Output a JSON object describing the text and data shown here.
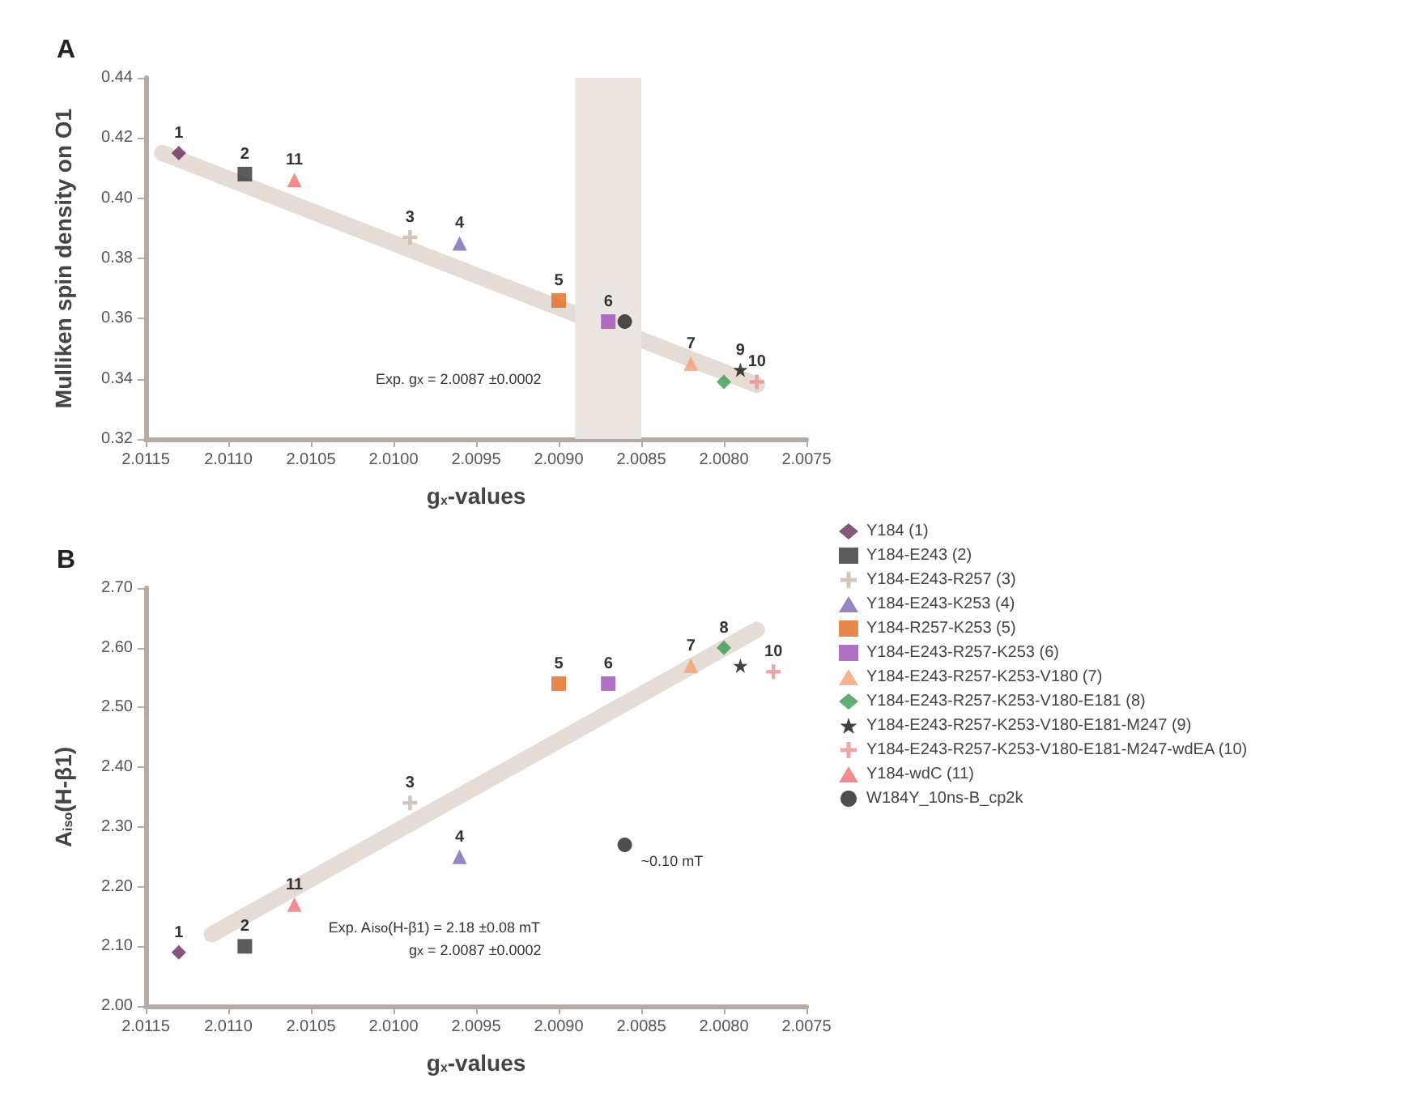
{
  "chart_data": [
    {
      "type": "scatter",
      "title": "A",
      "xlabel": "g$_{x}$-values",
      "ylabel": "Mulliken spin density on O1",
      "xlim": [
        2.0115,
        2.0075
      ],
      "xticks": [
        2.0115,
        {
          "value": 2.011,
          "label": "2.0110"
        },
        2.0105,
        {
          "value": 2.01,
          "label": "2.0100"
        },
        2.0095,
        {
          "value": 2.009,
          "label": "2.0090"
        },
        2.0085,
        {
          "value": 2.008,
          "label": "2.0080"
        },
        2.0075
      ],
      "ylim": [
        0.32,
        0.44
      ],
      "yticks": [
        {
          "value": 0.32,
          "label": "0.32"
        },
        {
          "value": 0.34,
          "label": "0.34"
        },
        {
          "value": 0.36,
          "label": "0.36"
        },
        {
          "value": 0.38,
          "label": "0.38"
        },
        {
          "value": 0.4,
          "label": "0.40"
        },
        {
          "value": 0.42,
          "label": "0.42"
        },
        {
          "value": 0.44,
          "label": "0.44"
        }
      ],
      "grid": false,
      "legend": false,
      "bands": [
        {
          "axis": "x",
          "from": 2.0089,
          "to": 2.0085,
          "color": "#ece6e3"
        }
      ],
      "series": [
        {
          "type": "line",
          "color": "#e6dcd6",
          "x": [
            2.0114,
            2.0078
          ],
          "values": [
            0.415,
            0.338
          ]
        },
        {
          "color": "#6b2a5a",
          "marker": "diamond",
          "x": [
            2.0113
          ],
          "values": [
            0.415
          ]
        },
        {
          "color": "#333333",
          "marker": "square",
          "x": [
            2.0109
          ],
          "values": [
            0.408
          ]
        },
        {
          "color": "#c8b8a8",
          "marker": "cross",
          "x": [
            2.0099
          ],
          "values": [
            0.387
          ]
        },
        {
          "color": "#7b68b0",
          "marker": "triangle",
          "x": [
            2.0096
          ],
          "values": [
            0.385
          ]
        },
        {
          "color": "#e06a20",
          "marker": "square",
          "x": [
            2.009
          ],
          "values": [
            0.366
          ]
        },
        {
          "color": "#9b4fb0",
          "marker": "square",
          "x": [
            2.0087
          ],
          "values": [
            0.359
          ]
        },
        {
          "color": "#f4a070",
          "marker": "triangle",
          "x": [
            2.0082
          ],
          "values": [
            0.345
          ]
        },
        {
          "color": "#3a9a50",
          "marker": "diamond",
          "x": [
            2.008
          ],
          "values": [
            0.339
          ]
        },
        {
          "color": "#111111",
          "marker": "star",
          "x": [
            2.0079
          ],
          "values": [
            0.343
          ]
        },
        {
          "color": "#e89090",
          "marker": "cross",
          "x": [
            2.0078
          ],
          "values": [
            0.339
          ]
        },
        {
          "color": "#f07070",
          "marker": "triangle",
          "x": [
            2.0106
          ],
          "values": [
            0.406
          ]
        },
        {
          "color": "#222222",
          "marker": "circle",
          "x": [
            2.0086
          ],
          "values": [
            0.359
          ]
        }
      ],
      "annotations": [
        "Exp. g$_{x}$ = 2.0087 ±0.0002",
        {
          "text": "1",
          "x": 2.0113,
          "y": 0.415
        },
        {
          "text": "2",
          "x": 2.0109,
          "y": 0.408
        },
        {
          "text": "11",
          "x": 2.0106,
          "y": 0.406
        },
        {
          "text": "3",
          "x": 2.0099,
          "y": 0.387
        },
        {
          "text": "4",
          "x": 2.0096,
          "y": 0.385
        },
        {
          "text": "5",
          "x": 2.009,
          "y": 0.366
        },
        {
          "text": "6",
          "x": 2.0087,
          "y": 0.359
        },
        {
          "text": "7",
          "x": 2.0082,
          "y": 0.345
        },
        {
          "text": "9",
          "x": 2.0079,
          "y": 0.343
        },
        {
          "text": "10",
          "x": 2.0078,
          "y": 0.339
        }
      ]
    },
    {
      "type": "scatter",
      "title": "B",
      "xlabel": "g$_{x}$-values",
      "ylabel": "A$_{iso}$(H-β1)",
      "xlim": [
        2.0115,
        2.0075
      ],
      "xticks": [
        2.0115,
        {
          "value": 2.011,
          "label": "2.0110"
        },
        2.0105,
        {
          "value": 2.01,
          "label": "2.0100"
        },
        2.0095,
        {
          "value": 2.009,
          "label": "2.0090"
        },
        2.0085,
        {
          "value": 2.008,
          "label": "2.0080"
        },
        2.0075
      ],
      "ylim": [
        2.0,
        2.7
      ],
      "yticks": [
        {
          "value": 2.0,
          "label": "2.00"
        },
        {
          "value": 2.1,
          "label": "2.10"
        },
        {
          "value": 2.2,
          "label": "2.20"
        },
        {
          "value": 2.3,
          "label": "2.30"
        },
        {
          "value": 2.4,
          "label": "2.40"
        },
        {
          "value": 2.5,
          "label": "2.50"
        },
        {
          "value": 2.6,
          "label": "2.60"
        },
        {
          "value": 2.7,
          "label": "2.70"
        }
      ],
      "grid": false,
      "legend": "right",
      "series": [
        {
          "type": "line",
          "color": "#e6dcd6",
          "x": [
            2.0111,
            2.0078
          ],
          "values": [
            2.12,
            2.63
          ]
        },
        {
          "name": "Y184 (1)",
          "color": "#6b2a5a",
          "marker": "diamond",
          "x": [
            2.0113
          ],
          "values": [
            2.09
          ]
        },
        {
          "name": "Y184-E243 (2)",
          "color": "#333333",
          "marker": "square",
          "x": [
            2.0109
          ],
          "values": [
            2.1
          ]
        },
        {
          "name": "Y184-E243-R257 (3)",
          "color": "#c8b8a8",
          "marker": "cross",
          "x": [
            2.0099
          ],
          "values": [
            2.34
          ]
        },
        {
          "name": "Y184-E243-K253 (4)",
          "color": "#7b68b0",
          "marker": "triangle",
          "x": [
            2.0096
          ],
          "values": [
            2.25
          ]
        },
        {
          "name": "Y184-R257-K253 (5)",
          "color": "#e06a20",
          "marker": "square",
          "x": [
            2.009
          ],
          "values": [
            2.54
          ]
        },
        {
          "name": "Y184-E243-R257-K253 (6)",
          "color": "#9b4fb0",
          "marker": "square",
          "x": [
            2.0087
          ],
          "values": [
            2.54
          ]
        },
        {
          "name": "Y184-E243-R257-K253-V180 (7)",
          "color": "#f4a070",
          "marker": "triangle",
          "x": [
            2.0082
          ],
          "values": [
            2.57
          ]
        },
        {
          "name": "Y184-E243-R257-K253-V180-E181 (8)",
          "color": "#3a9a50",
          "marker": "diamond",
          "x": [
            2.008
          ],
          "values": [
            2.6
          ]
        },
        {
          "name": "Y184-E243-R257-K253-V180-E181-M247 (9)",
          "color": "#111111",
          "marker": "star",
          "x": [
            2.0079
          ],
          "values": [
            2.57
          ]
        },
        {
          "name": "Y184-E243-R257-K253-V180-E181-M247-wdEA (10)",
          "color": "#e89090",
          "marker": "cross",
          "x": [
            2.0077
          ],
          "values": [
            2.56
          ]
        },
        {
          "name": "Y184-wdC (11)",
          "color": "#f07070",
          "marker": "triangle",
          "x": [
            2.0106
          ],
          "values": [
            2.17
          ]
        },
        {
          "name": "W184Y_10ns-B_cp2k",
          "color": "#222222",
          "marker": "circle",
          "x": [
            2.0086
          ],
          "values": [
            2.27
          ]
        }
      ],
      "annotations": [
        "Exp. A$_{iso}$(H-β1) = 2.18 ±0.08 mT",
        "g$_{x}$ = 2.0087 ±0.0002",
        {
          "text": "~0.10 mT",
          "x": 2.0086,
          "y": 2.27
        },
        {
          "text": "1",
          "x": 2.0113,
          "y": 2.09
        },
        {
          "text": "2",
          "x": 2.0109,
          "y": 2.1
        },
        {
          "text": "11",
          "x": 2.0106,
          "y": 2.17
        },
        {
          "text": "3",
          "x": 2.0099,
          "y": 2.34
        },
        {
          "text": "4",
          "x": 2.0096,
          "y": 2.25
        },
        {
          "text": "5",
          "x": 2.009,
          "y": 2.54
        },
        {
          "text": "6",
          "x": 2.0087,
          "y": 2.54
        },
        {
          "text": "7",
          "x": 2.0082,
          "y": 2.57
        },
        {
          "text": "8",
          "x": 2.008,
          "y": 2.6
        },
        {
          "text": "10",
          "x": 2.0077,
          "y": 2.56
        }
      ]
    }
  ]
}
